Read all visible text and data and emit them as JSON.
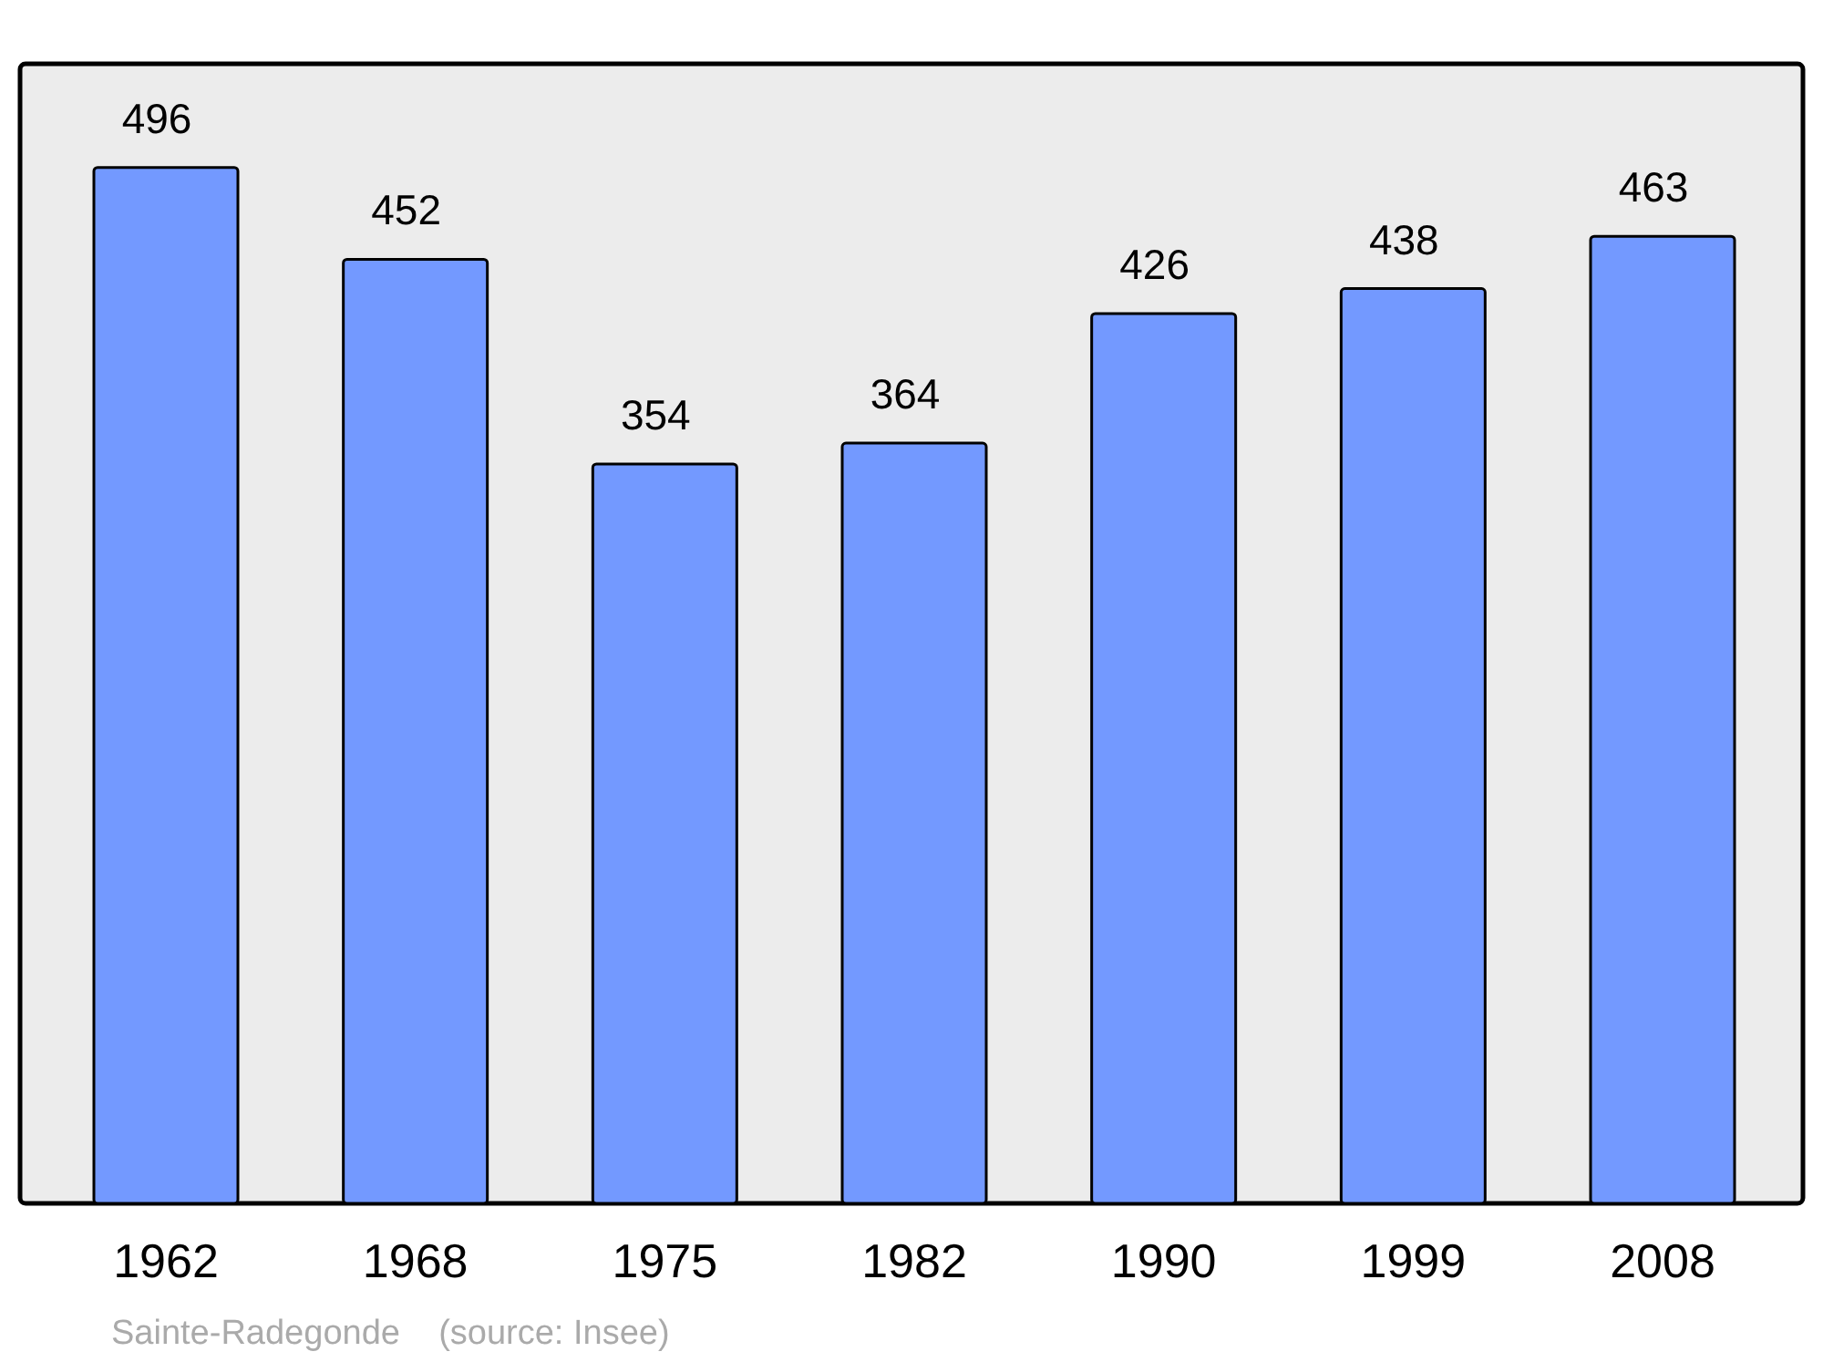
{
  "chart_data": {
    "type": "bar",
    "categories": [
      "1962",
      "1968",
      "1975",
      "1982",
      "1990",
      "1999",
      "2008"
    ],
    "values": [
      496,
      452,
      354,
      364,
      426,
      438,
      463
    ],
    "color": "#7399ff",
    "data_labels": true,
    "annotations": [
      "Sainte-Radegonde    (source: Insee)"
    ]
  }
}
